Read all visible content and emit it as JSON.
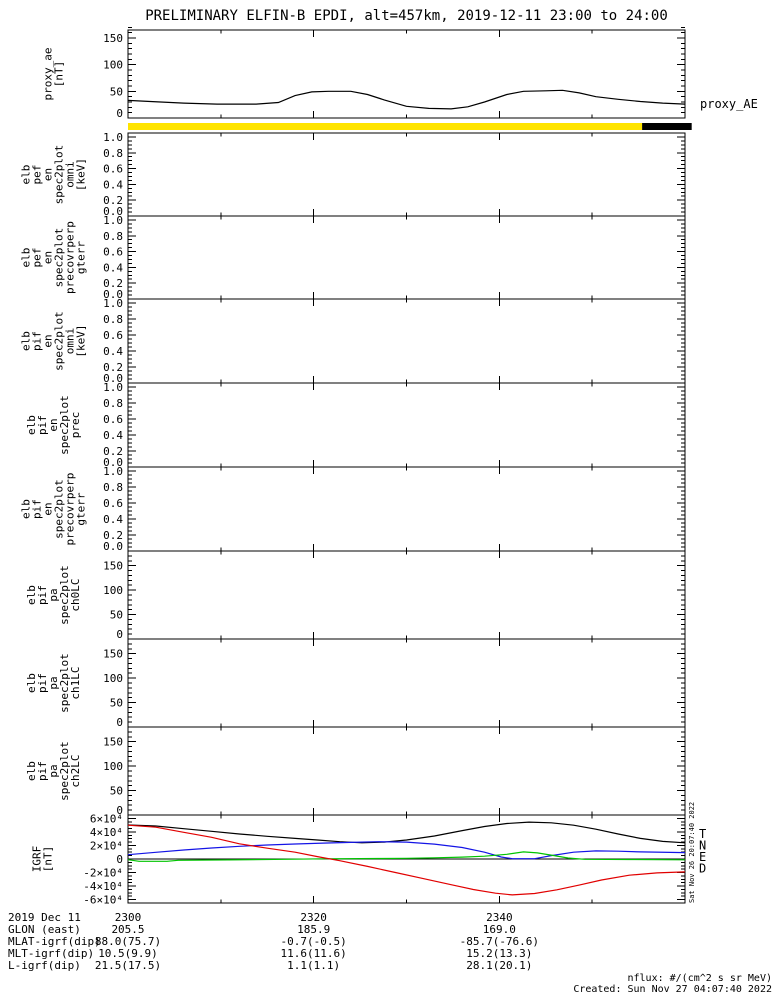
{
  "title": "PRELIMINARY ELFIN-B EPDI, alt=457km, 2019-12-11 23:00 to 24:00",
  "side_timestamp": "Sat Nov 26 20:07:40 2022",
  "footer": {
    "units": "nflux: #/(cm^2 s sr MeV)",
    "created": "Created: Sun Nov 27 04:07:40 2022"
  },
  "colors": {
    "background": "#ffffff",
    "frame": "#000000",
    "black": "#000000",
    "yellow": "#ffe400",
    "red": "#e10000",
    "green": "#00c400",
    "blue": "#1414e6"
  },
  "x_axis": {
    "date_label": "2019 Dec 11",
    "tick_labels": [
      "2300",
      "2320",
      "2340"
    ],
    "tick_minutes": [
      0,
      20,
      40
    ],
    "minor_minutes": [
      10,
      30,
      50
    ],
    "duration_minutes": 60,
    "annotation_rows": [
      {
        "label": "GLON (east)",
        "values": [
          "205.5",
          "185.9",
          "169.0"
        ]
      },
      {
        "label": "MLAT-igrf(dip)",
        "values": [
          "88.0(75.7)",
          "-0.7(-0.5)",
          "-85.7(-76.6)"
        ]
      },
      {
        "label": "MLT-igrf(dip)",
        "values": [
          "10.5(9.9)",
          "11.6(11.6)",
          "15.2(13.3)"
        ]
      },
      {
        "label": "L-igrf(dip)",
        "values": [
          "21.5(17.5)",
          "1.1(1.1)",
          "28.1(20.1)"
        ]
      }
    ]
  },
  "chart_data": [
    {
      "id": "proxy_ae",
      "type": "line",
      "ylabel_lines": [
        "proxy_ae",
        "[nT]"
      ],
      "right_label": "proxy_AE",
      "ylim": [
        0,
        165
      ],
      "yminor": 10,
      "yticks": [
        0,
        50,
        100,
        150
      ],
      "ytick_labels": [
        "0",
        "50",
        "100",
        "150"
      ],
      "series": [
        {
          "name": "proxy_AE",
          "color_key": "black",
          "points": [
            [
              0,
              33
            ],
            [
              0.04,
              31
            ],
            [
              0.1,
              28
            ],
            [
              0.16,
              26
            ],
            [
              0.23,
              26
            ],
            [
              0.27,
              29
            ],
            [
              0.3,
              42
            ],
            [
              0.33,
              49
            ],
            [
              0.36,
              50
            ],
            [
              0.4,
              50
            ],
            [
              0.43,
              44
            ],
            [
              0.46,
              34
            ],
            [
              0.5,
              22
            ],
            [
              0.54,
              18
            ],
            [
              0.58,
              17
            ],
            [
              0.61,
              21
            ],
            [
              0.64,
              30
            ],
            [
              0.68,
              44
            ],
            [
              0.71,
              50
            ],
            [
              0.75,
              51
            ],
            [
              0.78,
              52
            ],
            [
              0.81,
              47
            ],
            [
              0.84,
              40
            ],
            [
              0.88,
              35
            ],
            [
              0.92,
              31
            ],
            [
              0.96,
              28
            ],
            [
              1,
              26
            ]
          ]
        }
      ]
    },
    {
      "id": "sunlight_flag_bar",
      "type": "strip",
      "segments": [
        {
          "from": 0,
          "to": 0.923,
          "color_key": "yellow"
        },
        {
          "from": 0.923,
          "to": 1.012,
          "color_key": "black"
        }
      ]
    },
    {
      "id": "elb_pef_en_spec2plot_omni",
      "type": "empty",
      "ylabel_lines": [
        "elb",
        "pef",
        "en",
        "spec2plot",
        "omni",
        "[keV]"
      ],
      "ylim": [
        0,
        1.05
      ],
      "yminor": 0.05,
      "yticks": [
        0,
        0.2,
        0.4,
        0.6,
        0.8,
        1
      ],
      "ytick_labels": [
        "0.0",
        "0.2",
        "0.4",
        "0.6",
        "0.8",
        "1.0"
      ]
    },
    {
      "id": "elb_pef_en_spec2plot_precovrperp_gterr",
      "type": "empty",
      "ylabel_lines": [
        "elb",
        "pef",
        "en",
        "spec2plot",
        "precovrperp",
        "gterr"
      ],
      "ylim": [
        0,
        1.05
      ],
      "yminor": 0.05,
      "yticks": [
        0,
        0.2,
        0.4,
        0.6,
        0.8,
        1
      ],
      "ytick_labels": [
        "0.0",
        "0.2",
        "0.4",
        "0.6",
        "0.8",
        "1.0"
      ]
    },
    {
      "id": "elb_pif_en_spec2plot_omni",
      "type": "empty",
      "ylabel_lines": [
        "elb",
        "pif",
        "en",
        "spec2plot",
        "omni",
        "[keV]"
      ],
      "ylim": [
        0,
        1.05
      ],
      "yminor": 0.05,
      "yticks": [
        0,
        0.2,
        0.4,
        0.6,
        0.8,
        1
      ],
      "ytick_labels": [
        "0.0",
        "0.2",
        "0.4",
        "0.6",
        "0.8",
        "1.0"
      ]
    },
    {
      "id": "elb_pif_en_spec2plot_prec",
      "type": "empty",
      "ylabel_lines": [
        "elb",
        "pif",
        "en",
        "spec2plot",
        "prec"
      ],
      "ylim": [
        0,
        1.05
      ],
      "yminor": 0.05,
      "yticks": [
        0,
        0.2,
        0.4,
        0.6,
        0.8,
        1
      ],
      "ytick_labels": [
        "0.0",
        "0.2",
        "0.4",
        "0.6",
        "0.8",
        "1.0"
      ]
    },
    {
      "id": "elb_pif_en_spec2plot_precovrperp_gterr",
      "type": "empty",
      "ylabel_lines": [
        "elb",
        "pif",
        "en",
        "spec2plot",
        "precovrperp",
        "gterr"
      ],
      "ylim": [
        0,
        1.05
      ],
      "yminor": 0.05,
      "yticks": [
        0,
        0.2,
        0.4,
        0.6,
        0.8,
        1
      ],
      "ytick_labels": [
        "0.0",
        "0.2",
        "0.4",
        "0.6",
        "0.8",
        "1.0"
      ]
    },
    {
      "id": "elb_pif_pa_spec2plot_ch0LC",
      "type": "empty",
      "ylabel_lines": [
        "elb",
        "pif",
        "pa",
        "spec2plot",
        "ch0LC"
      ],
      "ylim": [
        0,
        180
      ],
      "yminor": 10,
      "yticks": [
        0,
        50,
        100,
        150
      ],
      "ytick_labels": [
        "0",
        "50",
        "100",
        "150"
      ]
    },
    {
      "id": "elb_pif_pa_spec2plot_ch1LC",
      "type": "empty",
      "ylabel_lines": [
        "elb",
        "pif",
        "pa",
        "spec2plot",
        "ch1LC"
      ],
      "ylim": [
        0,
        180
      ],
      "yminor": 10,
      "yticks": [
        0,
        50,
        100,
        150
      ],
      "ytick_labels": [
        "0",
        "50",
        "100",
        "150"
      ]
    },
    {
      "id": "elb_pif_pa_spec2plot_ch2LC",
      "type": "empty",
      "ylabel_lines": [
        "elb",
        "pif",
        "pa",
        "spec2plot",
        "ch2LC"
      ],
      "ylim": [
        0,
        180
      ],
      "yminor": 10,
      "yticks": [
        0,
        50,
        100,
        150
      ],
      "ytick_labels": [
        "0",
        "50",
        "100",
        "150"
      ]
    },
    {
      "id": "igrf",
      "type": "line",
      "ylabel_lines": [
        "IGRF",
        "[nT]"
      ],
      "ylim": [
        -65000,
        65000
      ],
      "yminor": 5000,
      "yticks": [
        -60000,
        -40000,
        -20000,
        0,
        20000,
        40000,
        60000
      ],
      "ytick_labels": [
        "-6×10⁴",
        "-4×10⁴",
        "-2×10⁴",
        "0",
        "2×10⁴",
        "4×10⁴",
        "6×10⁴"
      ],
      "zero_line": true,
      "legend": [
        {
          "label": "T",
          "color_key": "black"
        },
        {
          "label": "N",
          "color_key": "blue"
        },
        {
          "label": "E",
          "color_key": "green"
        },
        {
          "label": "D",
          "color_key": "red"
        }
      ],
      "series": [
        {
          "name": "T",
          "color_key": "black",
          "points": [
            [
              0,
              50200
            ],
            [
              0.05,
              48800
            ],
            [
              0.1,
              44800
            ],
            [
              0.15,
              40900
            ],
            [
              0.2,
              36900
            ],
            [
              0.25,
              33500
            ],
            [
              0.3,
              30500
            ],
            [
              0.34,
              28100
            ],
            [
              0.38,
              25500
            ],
            [
              0.42,
              24000
            ],
            [
              0.46,
              25000
            ],
            [
              0.5,
              28000
            ],
            [
              0.55,
              34000
            ],
            [
              0.6,
              42000
            ],
            [
              0.64,
              48000
            ],
            [
              0.68,
              52500
            ],
            [
              0.72,
              54500
            ],
            [
              0.76,
              53500
            ],
            [
              0.8,
              50000
            ],
            [
              0.84,
              44000
            ],
            [
              0.88,
              37000
            ],
            [
              0.92,
              30500
            ],
            [
              0.96,
              26000
            ],
            [
              1,
              24000
            ]
          ]
        },
        {
          "name": "N",
          "color_key": "blue",
          "points": [
            [
              0,
              6400
            ],
            [
              0.05,
              9900
            ],
            [
              0.1,
              13300
            ],
            [
              0.15,
              16300
            ],
            [
              0.2,
              18700
            ],
            [
              0.25,
              20700
            ],
            [
              0.3,
              22200
            ],
            [
              0.35,
              23500
            ],
            [
              0.4,
              24500
            ],
            [
              0.45,
              25500
            ],
            [
              0.5,
              25000
            ],
            [
              0.55,
              22000
            ],
            [
              0.6,
              17000
            ],
            [
              0.64,
              10000
            ],
            [
              0.67,
              3000
            ],
            [
              0.69,
              500
            ],
            [
              0.73,
              500
            ],
            [
              0.76,
              5000
            ],
            [
              0.8,
              10000
            ],
            [
              0.84,
              12000
            ],
            [
              0.88,
              11500
            ],
            [
              0.92,
              10500
            ],
            [
              1,
              9500
            ]
          ]
        },
        {
          "name": "E",
          "color_key": "green",
          "points": [
            [
              0,
              -1000
            ],
            [
              0.02,
              -3400
            ],
            [
              0.07,
              -3400
            ],
            [
              0.09,
              -1900
            ],
            [
              0.18,
              -1400
            ],
            [
              0.28,
              -400
            ],
            [
              0.35,
              300
            ],
            [
              0.45,
              800
            ],
            [
              0.5,
              1000
            ],
            [
              0.55,
              1700
            ],
            [
              0.6,
              2800
            ],
            [
              0.64,
              4200
            ],
            [
              0.68,
              7000
            ],
            [
              0.71,
              10500
            ],
            [
              0.735,
              9000
            ],
            [
              0.765,
              5000
            ],
            [
              0.79,
              1500
            ],
            [
              0.82,
              -400
            ],
            [
              0.9,
              -800
            ],
            [
              1,
              -1200
            ]
          ]
        },
        {
          "name": "D",
          "color_key": "red",
          "points": [
            [
              0,
              50000
            ],
            [
              0.05,
              47000
            ],
            [
              0.1,
              39500
            ],
            [
              0.15,
              32000
            ],
            [
              0.2,
              22500
            ],
            [
              0.25,
              16000
            ],
            [
              0.3,
              10000
            ],
            [
              0.34,
              3500
            ],
            [
              0.38,
              -2500
            ],
            [
              0.43,
              -11000
            ],
            [
              0.48,
              -20000
            ],
            [
              0.53,
              -29000
            ],
            [
              0.58,
              -38000
            ],
            [
              0.62,
              -45000
            ],
            [
              0.66,
              -50500
            ],
            [
              0.69,
              -53000
            ],
            [
              0.73,
              -51000
            ],
            [
              0.77,
              -45500
            ],
            [
              0.81,
              -38500
            ],
            [
              0.85,
              -31000
            ],
            [
              0.9,
              -24000
            ],
            [
              0.95,
              -20500
            ],
            [
              1,
              -19000
            ]
          ]
        }
      ]
    }
  ]
}
